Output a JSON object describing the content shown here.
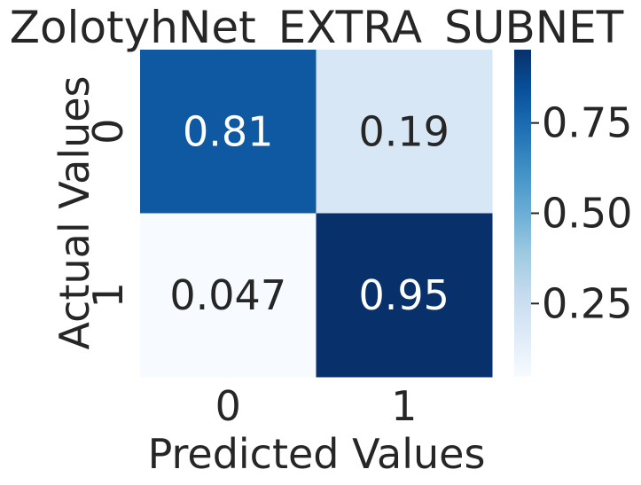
{
  "chart_data": {
    "type": "heatmap",
    "title": "ZolotyhNet_EXTRA_SUBNET",
    "xlabel": "Predicted Values",
    "ylabel": "Actual Values",
    "x_categories": [
      "0",
      "1"
    ],
    "y_categories": [
      "0",
      "1"
    ],
    "values": [
      [
        0.81,
        0.19
      ],
      [
        0.047,
        0.95
      ]
    ],
    "annotations": [
      [
        "0.81",
        "0.19"
      ],
      [
        "0.047",
        "0.95"
      ]
    ],
    "colormap": "Blues",
    "colorbar": {
      "min": 0.047,
      "max": 0.953,
      "ticks": [
        0.25,
        0.5,
        0.75
      ],
      "tick_labels": [
        "0.25",
        "0.50",
        "0.75"
      ]
    },
    "grid": false,
    "legend": "colorbar-right",
    "colors": {
      "low": "#f7fbff",
      "high": "#08306b",
      "text_dark": "#262626",
      "text_light": "#ffffff"
    }
  }
}
